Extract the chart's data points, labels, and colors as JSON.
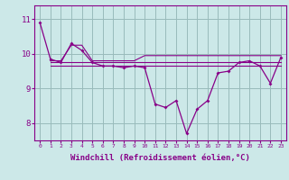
{
  "background_color": "#cce8e8",
  "line_color": "#880088",
  "grid_color": "#99bbbb",
  "xlabel": "Windchill (Refroidissement éolien,°C)",
  "xlabel_fontsize": 6.5,
  "ylim": [
    7.5,
    11.4
  ],
  "xlim": [
    -0.5,
    23.5
  ],
  "series_main": {
    "x": [
      0,
      1,
      2,
      3,
      4,
      5,
      6,
      7,
      8,
      9,
      10,
      11,
      12,
      13,
      14,
      15,
      16,
      17,
      18,
      19,
      20,
      21,
      22,
      23
    ],
    "y": [
      10.9,
      9.85,
      9.75,
      10.3,
      10.1,
      9.75,
      9.65,
      9.65,
      9.6,
      9.65,
      9.6,
      8.55,
      8.45,
      8.65,
      7.7,
      8.4,
      8.65,
      9.45,
      9.5,
      9.75,
      9.8,
      9.65,
      9.15,
      9.9
    ]
  },
  "series_flat": [
    {
      "x": [
        1,
        2,
        3,
        4,
        5,
        6,
        7,
        8,
        9,
        10,
        11,
        12,
        13,
        14,
        15,
        16,
        17,
        18,
        19,
        20,
        21,
        22,
        23
      ],
      "y": [
        9.8,
        9.8,
        10.25,
        10.25,
        9.8,
        9.8,
        9.8,
        9.8,
        9.8,
        9.95,
        9.95,
        9.95,
        9.95,
        9.95,
        9.95,
        9.95,
        9.95,
        9.95,
        9.95,
        9.95,
        9.95,
        9.95,
        9.95
      ]
    },
    {
      "x": [
        1,
        2,
        3,
        4,
        5,
        6,
        7,
        8,
        9,
        10,
        11,
        12,
        13,
        14,
        15,
        16,
        17,
        18,
        19,
        20,
        21,
        22,
        23
      ],
      "y": [
        9.75,
        9.75,
        9.75,
        9.75,
        9.75,
        9.75,
        9.75,
        9.75,
        9.75,
        9.75,
        9.75,
        9.75,
        9.75,
        9.75,
        9.75,
        9.75,
        9.75,
        9.75,
        9.75,
        9.75,
        9.75,
        9.75,
        9.75
      ]
    },
    {
      "x": [
        1,
        2,
        3,
        4,
        5,
        6,
        7,
        8,
        9,
        10,
        11,
        12,
        13,
        14,
        15,
        16,
        17,
        18,
        19,
        20,
        21,
        22,
        23
      ],
      "y": [
        9.65,
        9.65,
        9.65,
        9.65,
        9.65,
        9.65,
        9.65,
        9.65,
        9.65,
        9.65,
        9.65,
        9.65,
        9.65,
        9.65,
        9.65,
        9.65,
        9.65,
        9.65,
        9.65,
        9.65,
        9.65,
        9.65,
        9.65
      ]
    }
  ]
}
